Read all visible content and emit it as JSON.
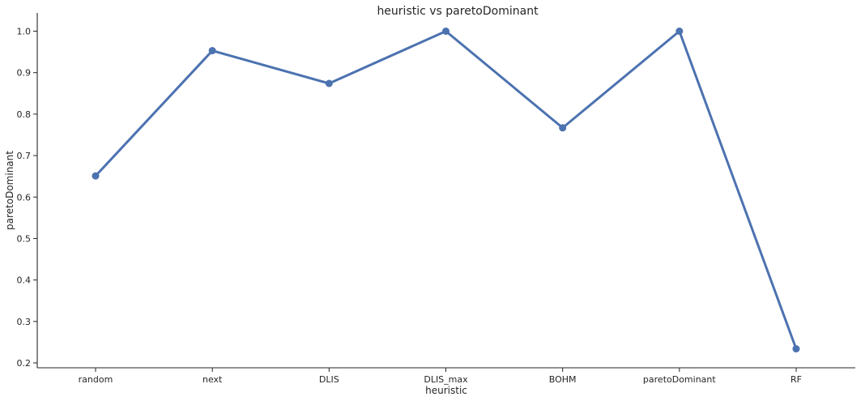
{
  "chart_data": {
    "type": "line",
    "title": "heuristic vs paretoDominant",
    "xlabel": "heuristic",
    "ylabel": "paretoDominant",
    "categories": [
      "random",
      "next",
      "DLIS",
      "DLIS_max",
      "BOHM",
      "paretoDominant",
      "RF"
    ],
    "series": [
      {
        "values": [
          0.651,
          0.953,
          0.874,
          1.0,
          0.767,
          1.0,
          0.234
        ]
      }
    ],
    "ylim": [
      0.19,
      1.045
    ],
    "yticks": [
      0.2,
      0.3,
      0.4,
      0.5,
      0.6,
      0.7,
      0.8,
      0.9,
      1.0
    ],
    "ytick_labels": [
      "0.2",
      "0.3",
      "0.4",
      "0.5",
      "0.6",
      "0.7",
      "0.8",
      "0.9",
      "1.0"
    ],
    "grid": false,
    "line_color": "#4c72b0"
  }
}
